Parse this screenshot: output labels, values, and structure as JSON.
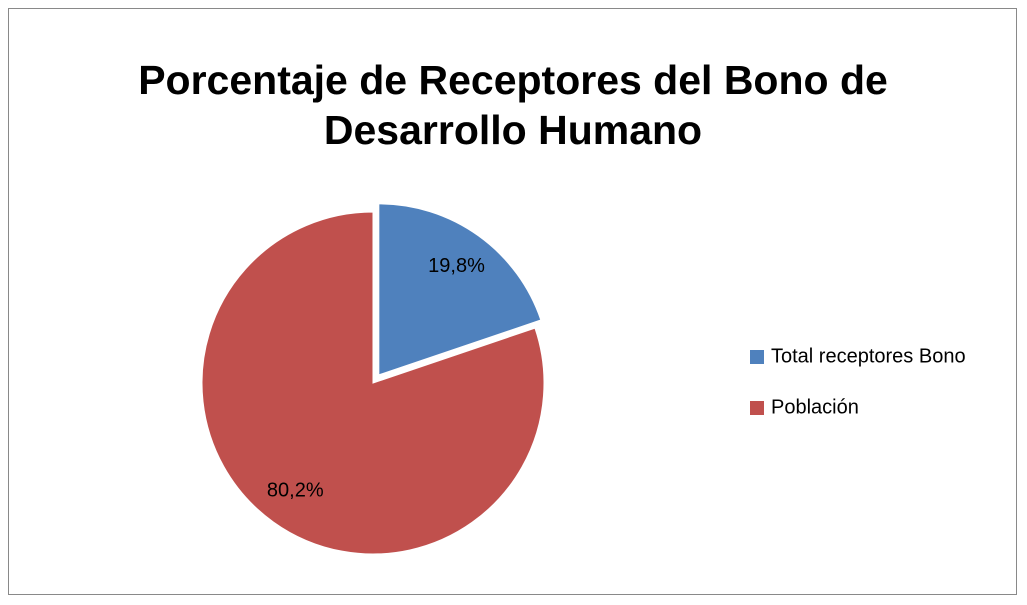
{
  "chart_data": {
    "type": "pie",
    "title": "Porcentaje de Receptores del Bono de Desarrollo Humano",
    "categories": [
      "Total receptores Bono",
      "Población"
    ],
    "values": [
      19.8,
      80.2
    ],
    "value_labels": [
      "19,8%",
      "80,2%"
    ],
    "colors": [
      "#4f81bd",
      "#c0504d"
    ],
    "legend": "right"
  }
}
